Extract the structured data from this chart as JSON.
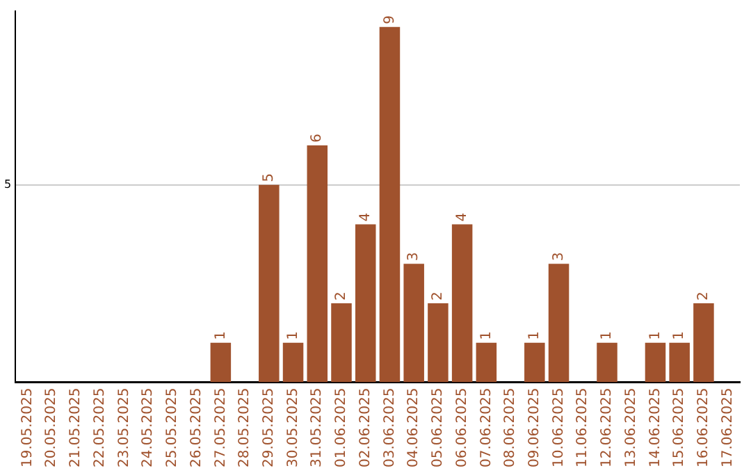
{
  "chart_data": {
    "type": "bar",
    "categories": [
      "19.05.2025",
      "20.05.2025",
      "21.05.2025",
      "22.05.2025",
      "23.05.2025",
      "24.05.2025",
      "25.05.2025",
      "26.05.2025",
      "27.05.2025",
      "28.05.2025",
      "29.05.2025",
      "30.05.2025",
      "31.05.2025",
      "01.06.2025",
      "02.06.2025",
      "03.06.2025",
      "04.06.2025",
      "05.06.2025",
      "06.06.2025",
      "07.06.2025",
      "08.06.2025",
      "09.06.2025",
      "10.06.2025",
      "11.06.2025",
      "12.06.2025",
      "13.06.2025",
      "14.06.2025",
      "15.06.2025",
      "16.06.2025",
      "17.06.2025"
    ],
    "values": [
      0,
      0,
      0,
      0,
      0,
      0,
      0,
      0,
      1,
      0,
      5,
      1,
      6,
      2,
      4,
      9,
      3,
      2,
      4,
      1,
      0,
      1,
      3,
      0,
      1,
      0,
      1,
      1,
      2,
      0
    ],
    "value_labels": [
      null,
      null,
      null,
      null,
      null,
      null,
      null,
      null,
      "1",
      null,
      "5",
      "1",
      "6",
      "2",
      "4",
      "9",
      "3",
      "2",
      "4",
      "1",
      null,
      "1",
      "3",
      null,
      "1",
      null,
      "1",
      "1",
      "2",
      null
    ],
    "color": "#a0522d",
    "ylim": [
      0,
      9.4
    ],
    "yticks": [
      5
    ],
    "grid": "y",
    "legend": false
  }
}
